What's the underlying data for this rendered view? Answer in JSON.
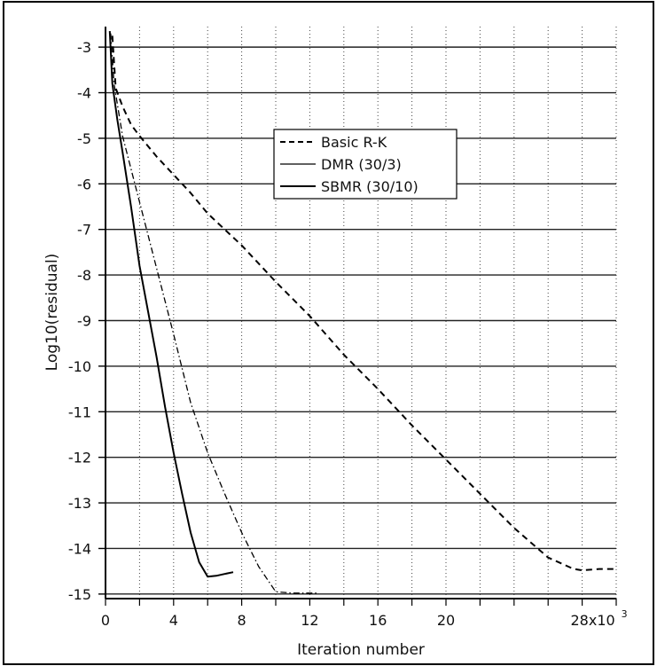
{
  "chart_data": {
    "type": "line",
    "title": "",
    "xlabel": "Iteration number",
    "ylabel": "Log10(residual)",
    "xlim": [
      0,
      30
    ],
    "ylim": [
      -15.1,
      -2.55
    ],
    "x_ticks": [
      0,
      4,
      8,
      12,
      16,
      20,
      28
    ],
    "x_tick_labels": [
      "0",
      "4",
      "8",
      "12",
      "16",
      "20",
      "28x10"
    ],
    "x_tick_exponent": "3",
    "y_ticks": [
      -3,
      -4,
      -5,
      -6,
      -7,
      -8,
      -9,
      -10,
      -11,
      -12,
      -13,
      -14,
      -15
    ],
    "y_tick_labels": [
      "-3",
      "-4",
      "-5",
      "-6",
      "-7",
      "-8",
      "-9",
      "-10",
      "-11",
      "-12",
      "-13",
      "-14",
      "-15"
    ],
    "grid": true,
    "legend_position": "top-center",
    "series": [
      {
        "name": "Basic R-K",
        "style": "dashed",
        "x": [
          0.4,
          0.6,
          1.0,
          1.5,
          2.0,
          3.0,
          4.0,
          5.0,
          6.0,
          8.0,
          10.0,
          12.0,
          14.0,
          16.0,
          18.0,
          20.0,
          22.0,
          24.0,
          26.0,
          27.5,
          28.0,
          29.0,
          30.0
        ],
        "y": [
          -2.75,
          -3.9,
          -4.3,
          -4.7,
          -4.95,
          -5.4,
          -5.8,
          -6.2,
          -6.65,
          -7.35,
          -8.15,
          -8.9,
          -9.75,
          -10.5,
          -11.3,
          -12.05,
          -12.8,
          -13.55,
          -14.2,
          -14.45,
          -14.48,
          -14.45,
          -14.45
        ]
      },
      {
        "name": "DMR (30/3)",
        "style": "dash-dot",
        "x": [
          0.3,
          0.5,
          1.0,
          2.0,
          3.0,
          4.0,
          5.0,
          6.0,
          7.0,
          8.0,
          9.0,
          10.0,
          11.0,
          12.0,
          12.5
        ],
        "y": [
          -2.7,
          -3.8,
          -4.95,
          -6.4,
          -7.85,
          -9.3,
          -10.8,
          -11.9,
          -12.8,
          -13.65,
          -14.4,
          -14.95,
          -14.98,
          -14.98,
          -14.98
        ]
      },
      {
        "name": "SBMR (30/10)",
        "style": "solid",
        "x": [
          0.25,
          0.4,
          0.7,
          1.0,
          1.5,
          2.0,
          2.5,
          3.0,
          3.5,
          4.0,
          4.5,
          5.0,
          5.5,
          6.0,
          6.5,
          7.0,
          7.5
        ],
        "y": [
          -2.65,
          -3.8,
          -4.6,
          -5.3,
          -6.5,
          -7.8,
          -8.8,
          -9.8,
          -10.9,
          -11.9,
          -12.8,
          -13.65,
          -14.3,
          -14.62,
          -14.6,
          -14.56,
          -14.52
        ]
      }
    ]
  }
}
